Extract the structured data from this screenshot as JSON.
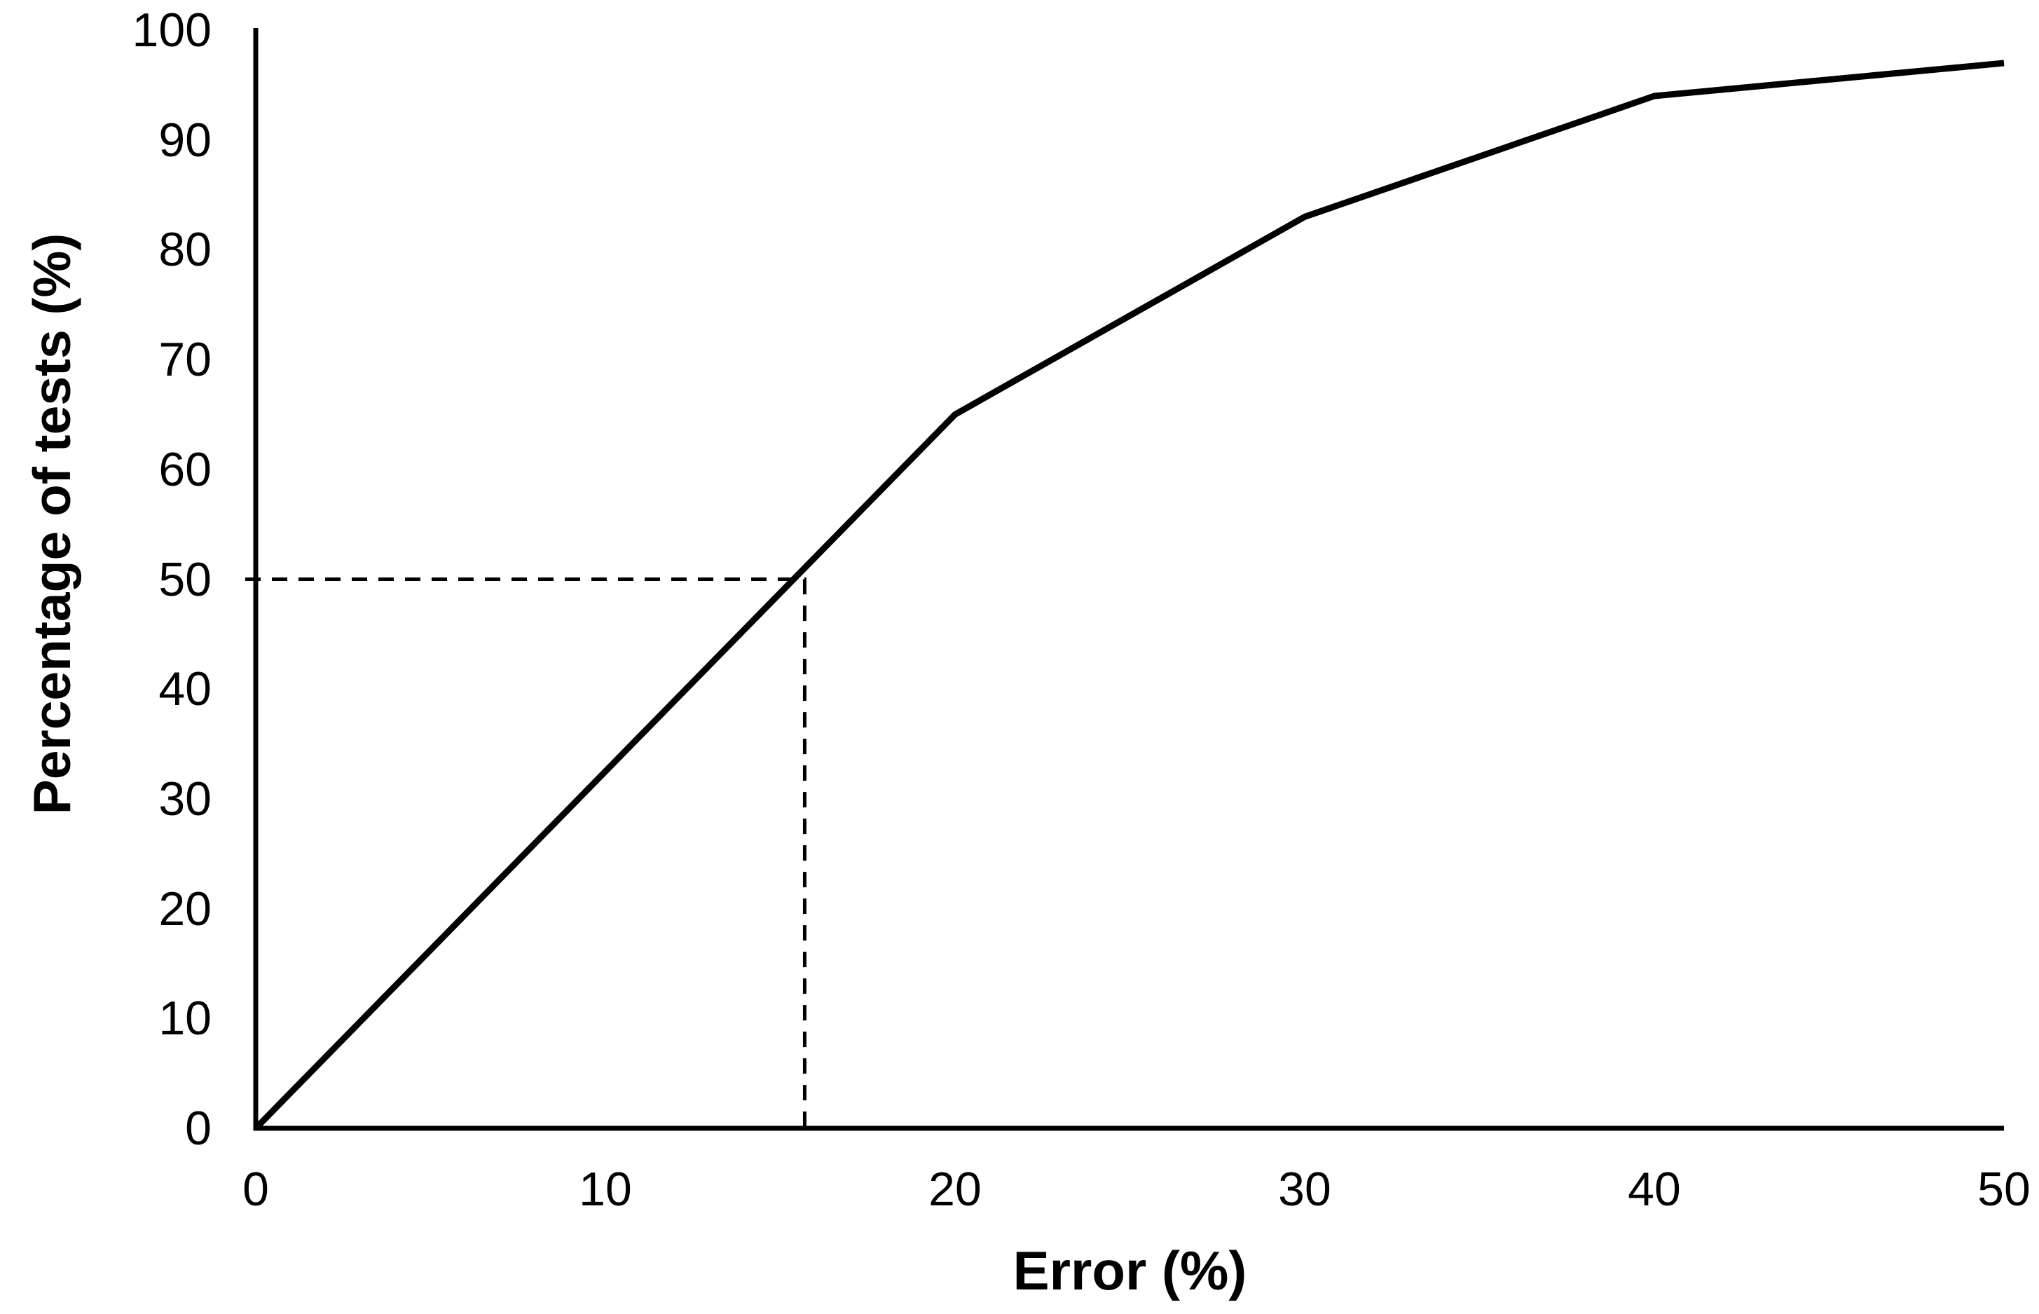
{
  "chart_data": {
    "type": "line",
    "title": "",
    "xlabel": "Error (%)",
    "ylabel": "Percentage of tests (%)",
    "xlim": [
      0,
      50
    ],
    "ylim": [
      0,
      100
    ],
    "x_tick_labels": [
      "0",
      "10",
      "20",
      "30",
      "40",
      "50"
    ],
    "y_tick_labels": [
      "0",
      "10",
      "20",
      "30",
      "40",
      "50",
      "60",
      "70",
      "80",
      "90",
      "100"
    ],
    "grid": false,
    "legend": "none",
    "background_color": "#ffffff",
    "line_color": "#000000",
    "series": [
      {
        "name": "cumulative-percentage-of-tests-vs-error",
        "style": "solid",
        "color": "#000000",
        "x": [
          0,
          20,
          30,
          40,
          50
        ],
        "y": [
          0,
          65,
          83,
          94,
          97
        ]
      }
    ],
    "annotation": {
      "name": "median-guide",
      "style": "dashed",
      "color": "#000000",
      "y": 50,
      "x": 15.7,
      "description": "Dashed guide lines: horizontal at 50% of tests meeting the curve at an error of about 16%, with a vertical drop to the x-axis"
    }
  }
}
